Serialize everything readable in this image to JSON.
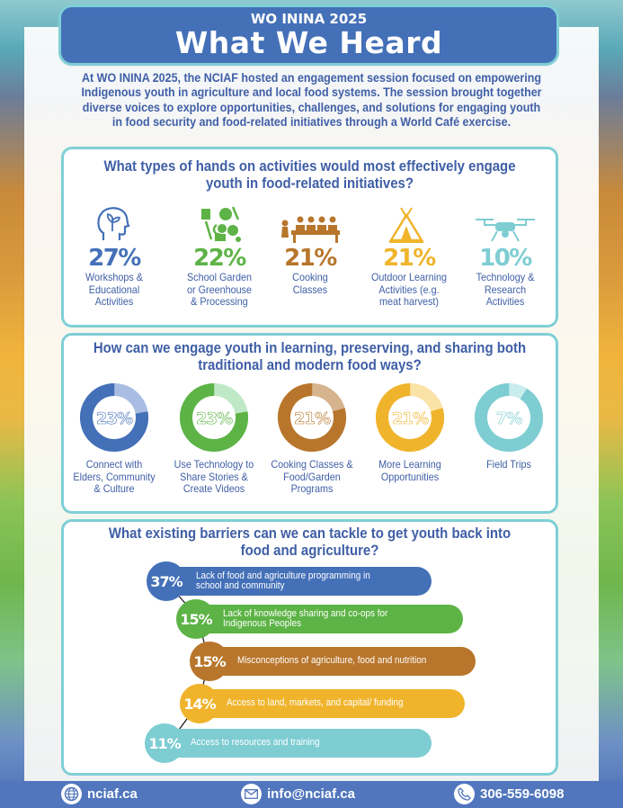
{
  "header": {
    "subtitle": "WO ININA 2025",
    "title": "What We Heard"
  },
  "intro": "At WO ININA 2025, the NCIAF hosted an engagement session focused on empowering Indigenous youth in agriculture and local food systems. The session brought together diverse voices to explore opportunities, challenges, and solutions for engaging youth in food security and food-related initiatives through a World Café exercise.",
  "section1": {
    "question": "What types of hands on activities would most effectively engage youth in food-related initiatives?",
    "items": [
      {
        "pct": "27%",
        "label": "Workshops & Educational Activities",
        "color": "#4470b8",
        "icon": "head-sprout-icon"
      },
      {
        "pct": "22%",
        "label": "School Garden or Greenhouse & Processing",
        "color": "#5db346",
        "icon": "garden-tools-icon"
      },
      {
        "pct": "21%",
        "label": "Cooking Classes",
        "color": "#b8762c",
        "icon": "cooking-class-icon"
      },
      {
        "pct": "21%",
        "label": "Outdoor Learning Activities (e.g. meat harvest)",
        "color": "#f0b42c",
        "icon": "teepee-icon"
      },
      {
        "pct": "10%",
        "label": "Technology & Research Activities",
        "color": "#7ecdd3",
        "icon": "drone-icon"
      }
    ]
  },
  "section2": {
    "question": "How can we engage youth in learning, preserving, and sharing both traditional and modern food ways?",
    "items": [
      {
        "pct": "23%",
        "value": 23,
        "label": "Connect with Elders, Community & Culture",
        "color": "#4470b8",
        "light": "#a9bde3"
      },
      {
        "pct": "23%",
        "value": 23,
        "label": "Use Technology to Share Stories & Create Videos",
        "color": "#5db346",
        "light": "#bfe8c7"
      },
      {
        "pct": "21%",
        "value": 21,
        "label": "Cooking Classes & Food/Garden Programs",
        "color": "#b8762c",
        "light": "#d6b48e"
      },
      {
        "pct": "21%",
        "value": 21,
        "label": "More Learning Opportunities",
        "color": "#f0b42c",
        "light": "#fbe2a7"
      },
      {
        "pct": "7%",
        "value": 7,
        "label": "Field Trips",
        "color": "#7ecdd3",
        "light": "#c9ecee"
      }
    ]
  },
  "section3": {
    "question": "What existing barriers can we can tackle to get youth back into food and agriculture?",
    "items": [
      {
        "pct": "37%",
        "value": 37,
        "label": "Lack of food and agriculture programming in school and community",
        "color": "#4470b8"
      },
      {
        "pct": "15%",
        "value": 15,
        "label": "Lack of knowledge sharing and co-ops for Indigenous Peoples",
        "color": "#5db346"
      },
      {
        "pct": "15%",
        "value": 15,
        "label": "Misconceptions of agriculture, food and nutrition",
        "color": "#b8762c"
      },
      {
        "pct": "14%",
        "value": 14,
        "label": "Access to land, markets, and capital/ funding",
        "color": "#f0b42c"
      },
      {
        "pct": "11%",
        "value": 11,
        "label": "Access to resources and training",
        "color": "#7ecdd3"
      }
    ]
  },
  "footer": {
    "website": "nciaf.ca",
    "email": "info@nciaf.ca",
    "phone": "306-559-6098"
  }
}
